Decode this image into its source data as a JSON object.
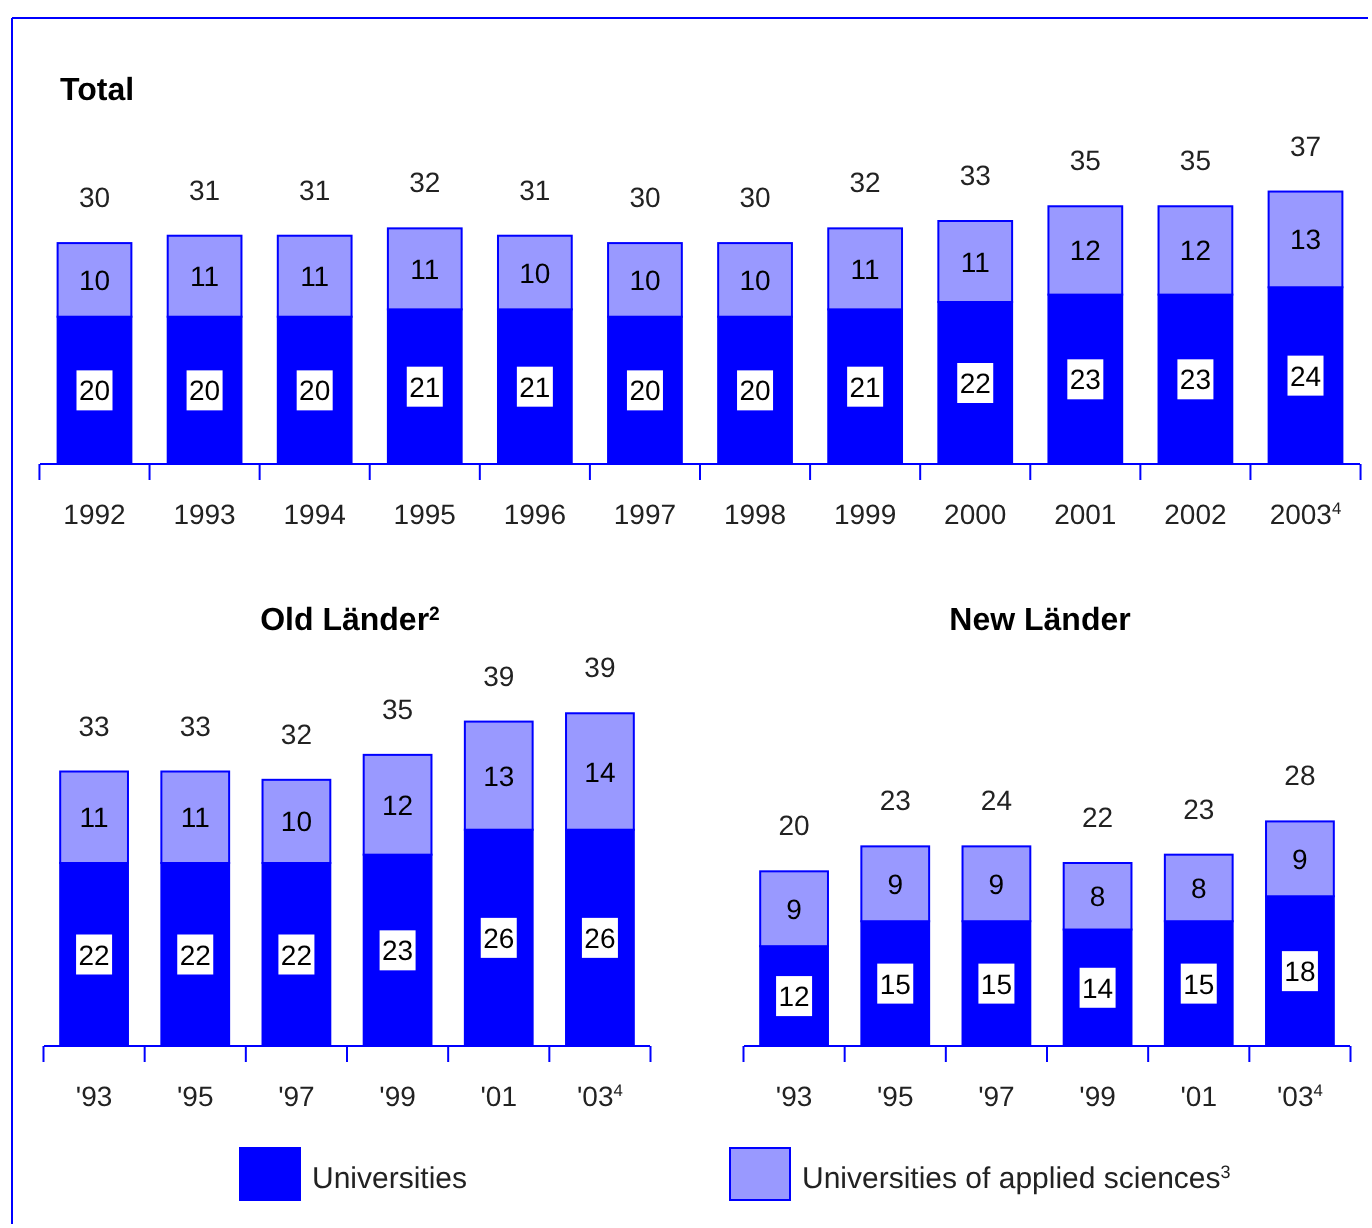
{
  "chart_data": [
    {
      "type": "bar",
      "title": "Total",
      "stacked": true,
      "data_labels": true,
      "legend": false,
      "categories": [
        "1992",
        "1993",
        "1994",
        "1995",
        "1996",
        "1997",
        "1998",
        "1999",
        "2000",
        "2001",
        "2002",
        "2003$^{4}$"
      ],
      "series": [
        {
          "color": "#0000ff",
          "values": [
            20,
            20,
            20,
            21,
            21,
            20,
            20,
            21,
            22,
            23,
            23,
            24
          ]
        },
        {
          "color": "#9999ff",
          "values": [
            10,
            11,
            11,
            11,
            10,
            10,
            10,
            11,
            11,
            12,
            12,
            13
          ]
        }
      ],
      "totals": [
        "30",
        "31",
        "31",
        "32",
        "31",
        "30",
        "30",
        "32",
        "33",
        "35",
        "35",
        "37"
      ]
    },
    {
      "type": "bar",
      "title": "Old Länder$^{2}$",
      "stacked": true,
      "data_labels": true,
      "legend": false,
      "categories": [
        "'93",
        "'95",
        "'97",
        "'99",
        "'01",
        "'03$^{4}$"
      ],
      "series": [
        {
          "color": "#0000ff",
          "values": [
            22,
            22,
            22,
            23,
            26,
            26
          ]
        },
        {
          "color": "#9999ff",
          "values": [
            11,
            11,
            10,
            12,
            13,
            14
          ]
        }
      ],
      "totals": [
        "33",
        "33",
        "32",
        "35",
        "39",
        "39"
      ]
    },
    {
      "type": "bar",
      "title": "New Länder",
      "stacked": true,
      "data_labels": true,
      "legend": "bottom",
      "categories": [
        "'93",
        "'95",
        "'97",
        "'99",
        "'01",
        "'03$^{4}$"
      ],
      "series": [
        {
          "name": "Universities",
          "color": "#0000ff",
          "values": [
            12,
            15,
            15,
            14,
            15,
            18
          ]
        },
        {
          "name": "Universities of applied sciences$^{3}$",
          "color": "#9999ff",
          "values": [
            9,
            9,
            9,
            8,
            8,
            9
          ]
        }
      ],
      "totals": [
        "20",
        "23",
        "24",
        "22",
        "23",
        "28"
      ]
    }
  ]
}
